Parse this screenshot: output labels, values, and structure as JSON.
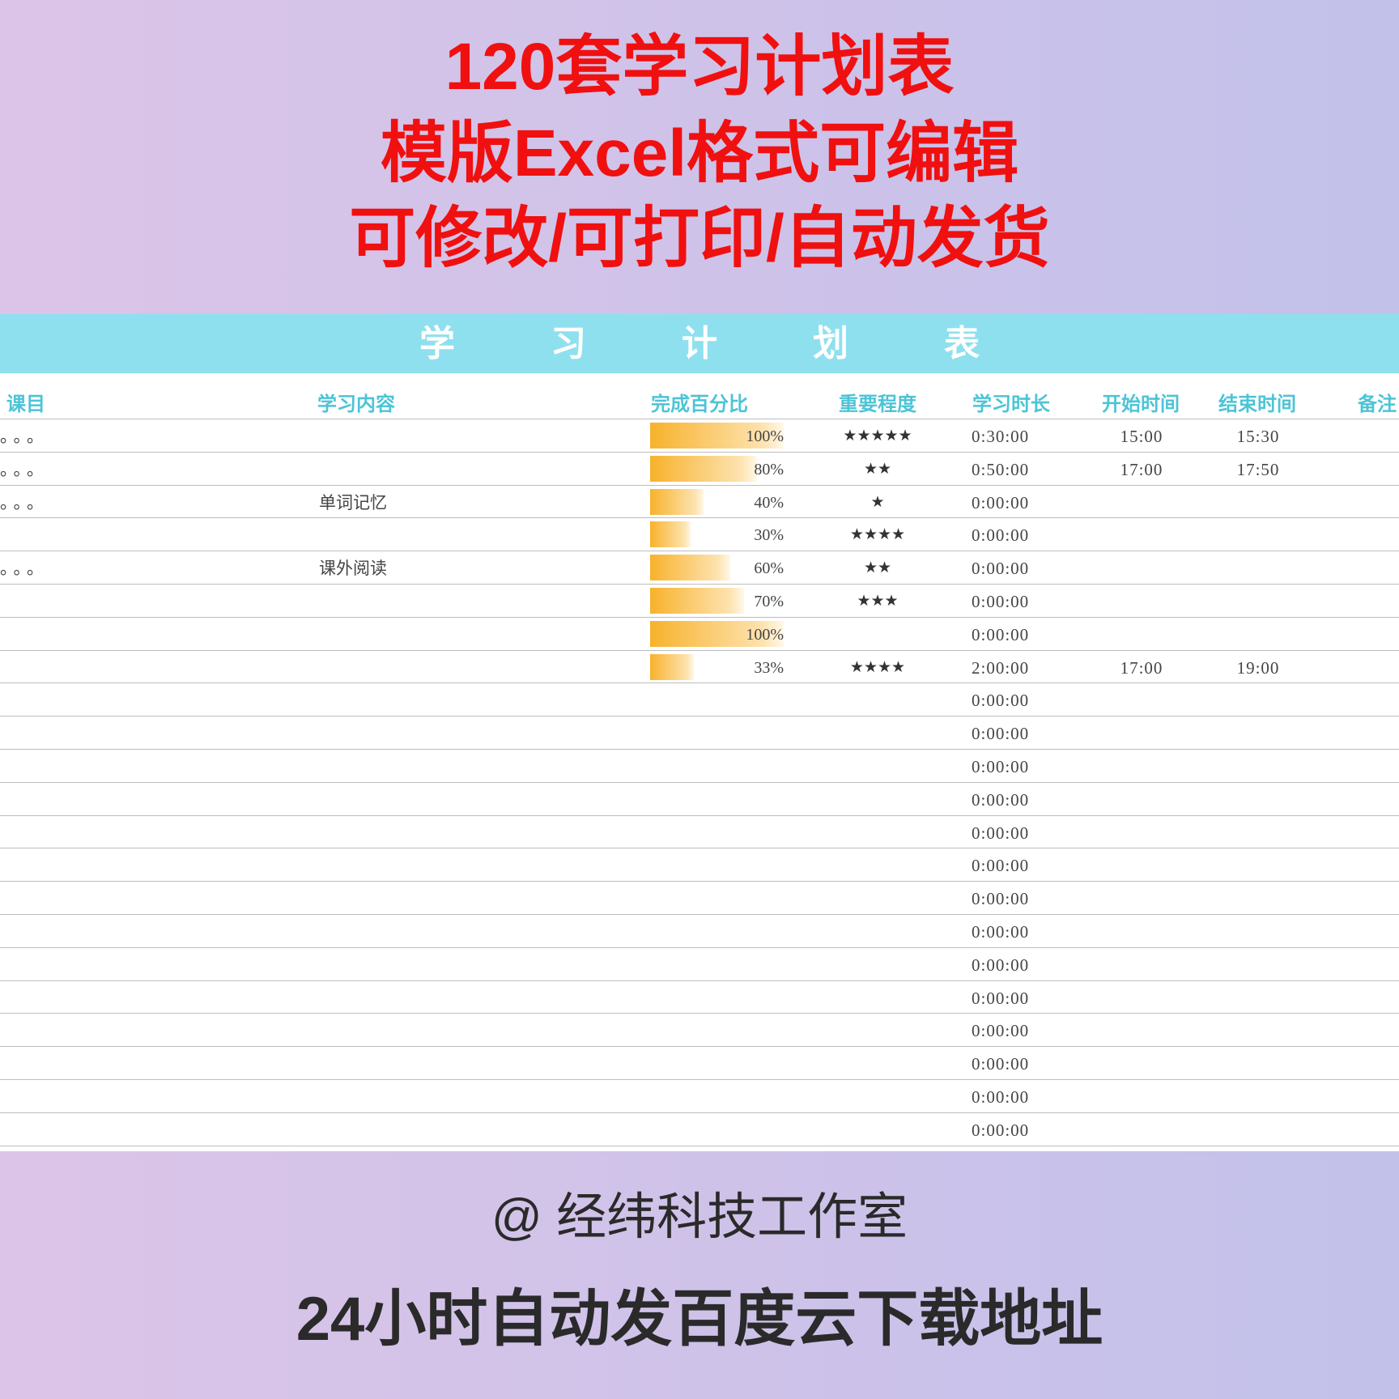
{
  "header": {
    "lines": [
      "120套学习计划表",
      "模版Excel格式可编辑",
      "可修改/可打印/自动发货"
    ]
  },
  "sheet": {
    "title": "学习计划表",
    "columns": [
      "课目",
      "学习内容",
      "完成百分比",
      "重要程度",
      "学习时长",
      "开始时间",
      "结束时间",
      "备注"
    ],
    "rows": [
      {
        "subject": "。。。",
        "progress": {
          "value": 100,
          "label": "100%"
        },
        "importance": "★★★★★",
        "duration": "0:30:00",
        "start": "15:00",
        "end": "15:30"
      },
      {
        "subject": "。。。",
        "progress": {
          "value": 80,
          "label": "80%"
        },
        "importance": "★★",
        "duration": "0:50:00",
        "start": "17:00",
        "end": "17:50"
      },
      {
        "subject": "。。。",
        "content": "单词记忆",
        "progress": {
          "value": 40,
          "label": "40%"
        },
        "importance": "★",
        "duration": "0:00:00"
      },
      {
        "progress": {
          "value": 30,
          "label": "30%"
        },
        "importance": "★★★★",
        "duration": "0:00:00"
      },
      {
        "subject": "。。。",
        "content": "课外阅读",
        "progress": {
          "value": 60,
          "label": "60%"
        },
        "importance": "★★",
        "duration": "0:00:00"
      },
      {
        "progress": {
          "value": 70,
          "label": "70%"
        },
        "importance": "★★★",
        "duration": "0:00:00"
      },
      {
        "progress": {
          "value": 100,
          "label": "100%"
        },
        "duration": "0:00:00"
      },
      {
        "progress": {
          "value": 33,
          "label": "33%"
        },
        "importance": "★★★★",
        "duration": "2:00:00",
        "start": "17:00",
        "end": "19:00"
      },
      {
        "duration": "0:00:00"
      },
      {
        "duration": "0:00:00"
      },
      {
        "duration": "0:00:00"
      },
      {
        "duration": "0:00:00"
      },
      {
        "duration": "0:00:00"
      },
      {
        "duration": "0:00:00"
      },
      {
        "duration": "0:00:00"
      },
      {
        "duration": "0:00:00"
      },
      {
        "duration": "0:00:00"
      },
      {
        "duration": "0:00:00"
      },
      {
        "duration": "0:00:00"
      },
      {
        "duration": "0:00:00"
      },
      {
        "duration": "0:00:00"
      },
      {
        "duration": "0:00:00"
      }
    ]
  },
  "footer": {
    "studio": "@ 经纬科技工作室",
    "note": "24小时自动发百度云下载地址"
  }
}
